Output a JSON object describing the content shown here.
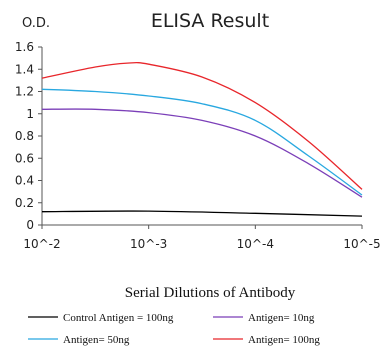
{
  "chart_data": {
    "type": "line",
    "title": "ELISA Result",
    "ylabel": "O.D.",
    "xlabel": "Serial Dilutions  of Antibody",
    "x": [
      "10^-2",
      "10^-3",
      "10^-4",
      "10^-5"
    ],
    "ylim": [
      0,
      1.6
    ],
    "yticks": [
      "0",
      "0.2",
      "0.4",
      "0.6",
      "0.8",
      "1",
      "1.2",
      "1.4",
      "1.6"
    ],
    "grid": false,
    "legend_position": "bottom",
    "series": [
      {
        "name": "Control Antigen = 100ng",
        "color": "#000000",
        "points": [
          [
            0,
            0.12
          ],
          [
            1,
            0.125
          ],
          [
            2,
            0.105
          ],
          [
            3,
            0.08
          ]
        ]
      },
      {
        "name": "Antigen= 10ng",
        "color": "#7b3fb8",
        "points": [
          [
            0,
            1.04
          ],
          [
            0.5,
            1.04
          ],
          [
            1,
            1.01
          ],
          [
            1.5,
            0.94
          ],
          [
            2,
            0.8
          ],
          [
            2.5,
            0.55
          ],
          [
            3,
            0.25
          ]
        ]
      },
      {
        "name": "Antigen= 50ng",
        "color": "#29a8e0",
        "points": [
          [
            0,
            1.22
          ],
          [
            0.5,
            1.2
          ],
          [
            1,
            1.16
          ],
          [
            1.5,
            1.09
          ],
          [
            2,
            0.94
          ],
          [
            2.5,
            0.62
          ],
          [
            3,
            0.27
          ]
        ]
      },
      {
        "name": "Antigen= 100ng",
        "color": "#e8262b",
        "points": [
          [
            0,
            1.32
          ],
          [
            0.5,
            1.42
          ],
          [
            0.8,
            1.455
          ],
          [
            1,
            1.445
          ],
          [
            1.5,
            1.33
          ],
          [
            2,
            1.1
          ],
          [
            2.5,
            0.75
          ],
          [
            3,
            0.32
          ]
        ]
      }
    ]
  }
}
